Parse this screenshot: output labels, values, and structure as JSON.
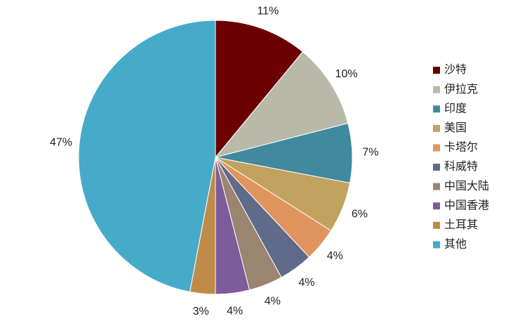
{
  "chart_data": {
    "type": "pie",
    "categories": [
      "沙特",
      "伊拉克",
      "印度",
      "美国",
      "卡塔尔",
      "科威特",
      "中国大陆",
      "中国香港",
      "土耳其",
      "其他"
    ],
    "values": [
      11,
      10,
      7,
      6,
      4,
      4,
      4,
      4,
      3,
      47
    ],
    "value_labels": [
      "11%",
      "10%",
      "7%",
      "6%",
      "4%",
      "4%",
      "4%",
      "4%",
      "3%",
      "47%"
    ],
    "colors": [
      "#6b0000",
      "#b9b9a9",
      "#3f8a9e",
      "#c2a25f",
      "#e0955f",
      "#5f6b89",
      "#9b8571",
      "#7f5b9b",
      "#c08b49",
      "#46abc9"
    ],
    "legend": "right"
  }
}
